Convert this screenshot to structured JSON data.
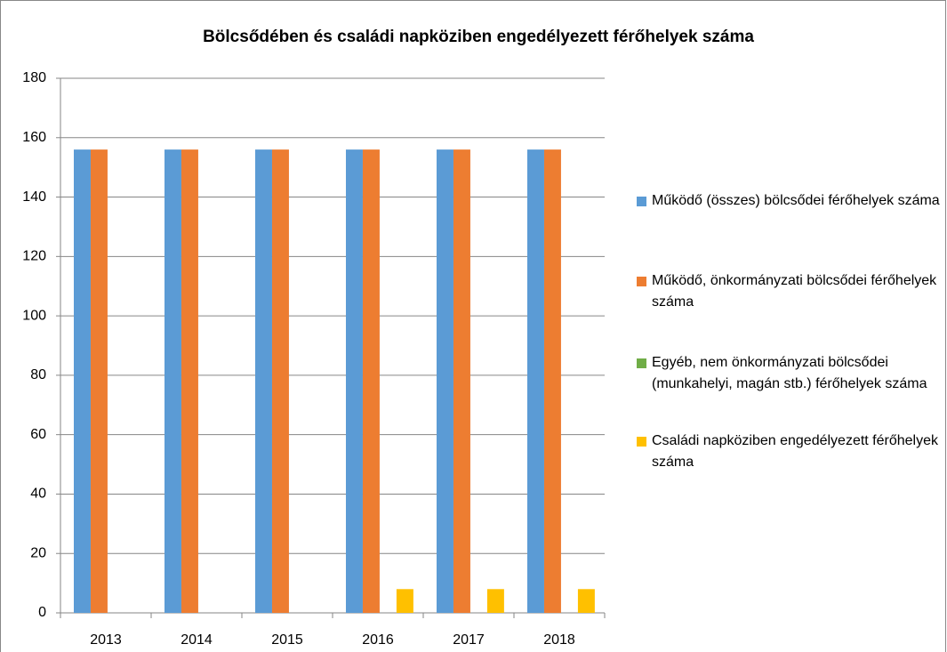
{
  "chart_data": {
    "type": "bar",
    "title": "Bölcsődében és családi napköziben engedélyezett férőhelyek száma",
    "categories": [
      "2013",
      "2014",
      "2015",
      "2016",
      "2017",
      "2018"
    ],
    "series": [
      {
        "name": "Működő (összes) bölcsődei férőhelyek száma",
        "color": "#5b9bd5",
        "values": [
          156,
          156,
          156,
          156,
          156,
          156
        ]
      },
      {
        "name": "Működő, önkormányzati bölcsődei férőhelyek száma",
        "color": "#ed7d31",
        "values": [
          156,
          156,
          156,
          156,
          156,
          156
        ]
      },
      {
        "name": "Egyéb, nem önkormányzati bölcsődei (munkahelyi, magán stb.) férőhelyek száma",
        "color": "#70ad47",
        "values": [
          0,
          0,
          0,
          0,
          0,
          0
        ]
      },
      {
        "name": "Családi napköziben engedélyezett férőhelyek száma",
        "color": "#ffc000",
        "values": [
          0,
          0,
          0,
          8,
          8,
          8
        ]
      }
    ],
    "ylim": [
      0,
      180
    ],
    "yticks": [
      0,
      20,
      40,
      60,
      80,
      100,
      120,
      140,
      160,
      180
    ],
    "grid": true,
    "legend": "right"
  }
}
